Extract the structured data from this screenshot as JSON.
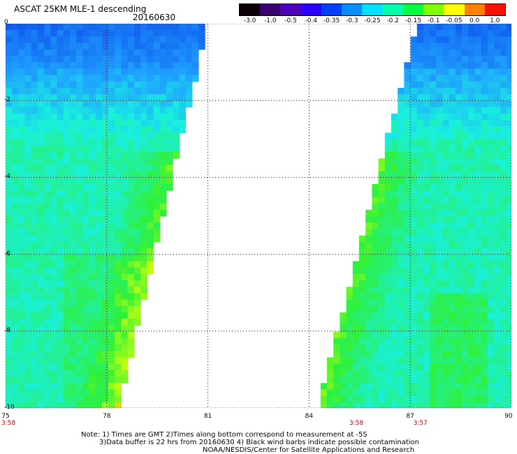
{
  "header": {
    "title": "ASCAT 25KM MLE-1 descending",
    "date": "20160630"
  },
  "colorbar": {
    "labels": [
      "-3.0",
      "-1.0",
      "-0.5",
      "-0.4",
      "-0.35",
      "-0.3",
      "-0.25",
      "-0.2",
      "-0.15",
      "-0.1",
      "-0.05",
      "0.0",
      "1.0"
    ],
    "colors": [
      "#0b0008",
      "#3a0070",
      "#4f00b8",
      "#2a00ff",
      "#0040ff",
      "#0090ff",
      "#00e0ff",
      "#00ffb0",
      "#00ff40",
      "#80ff00",
      "#ffff00",
      "#ff8000",
      "#ff1000"
    ]
  },
  "map": {
    "x_range": [
      75,
      90
    ],
    "y_range": [
      -10,
      0
    ],
    "x_ticks": [
      "75",
      "78",
      "81",
      "84",
      "87",
      "90"
    ],
    "y_ticks": [
      "0",
      "-2",
      "-4",
      "-6",
      "-8",
      "-10"
    ],
    "pass_times": [
      {
        "lon": 75,
        "time": "3:58"
      },
      {
        "lon": 85.4,
        "time": "3:58"
      },
      {
        "lon": 87.3,
        "time": "3:57"
      }
    ],
    "swaths": [
      {
        "name": "west swath",
        "top_edge_lon": 81.0,
        "bottom_edge_lon": 78.35
      },
      {
        "name": "east swath",
        "top_edge_lon": 87.2,
        "bottom_edge_lon": 84.25
      }
    ],
    "colors": {
      "low": "#0b3fe6",
      "mid": "#1fa0ff",
      "cyan": "#19f0e0",
      "green": "#2ff03a",
      "yellow": "#c8ff10",
      "orange": "#ffa500"
    }
  },
  "footer": {
    "note_line1": "Note: 1) Times are GMT 2)Times along bottom correspond to measurement at -5S",
    "note_line2": "3)Data buffer is 22 hrs from 20160630 4) Black wind barbs indicate possible contamination",
    "note_line3": "NOAA/NESDIS/Center for Satellite Applications and Research"
  }
}
